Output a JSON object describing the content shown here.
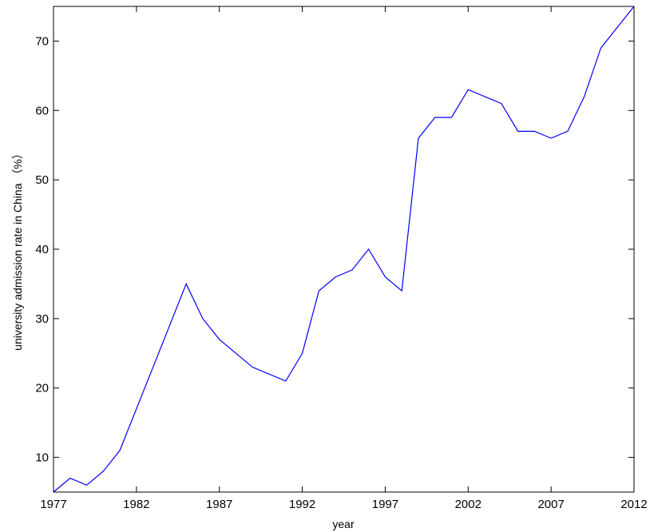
{
  "chart_data": {
    "type": "line",
    "title": "",
    "xlabel": "year",
    "ylabel": "university admission rate in China （%）",
    "xlim": [
      1977,
      2012
    ],
    "ylim": [
      5,
      75
    ],
    "x_ticks": [
      "1977",
      "1982",
      "1987",
      "1992",
      "1997",
      "2002",
      "2007",
      "2012"
    ],
    "y_ticks": [
      "10",
      "20",
      "30",
      "40",
      "50",
      "60",
      "70"
    ],
    "grid": false,
    "legend": "none",
    "series": [
      {
        "color": "#0000ff",
        "x": [
          1977,
          1978,
          1979,
          1980,
          1981,
          1982,
          1983,
          1984,
          1985,
          1986,
          1987,
          1988,
          1989,
          1990,
          1991,
          1992,
          1993,
          1994,
          1995,
          1996,
          1997,
          1998,
          1999,
          2000,
          2001,
          2002,
          2003,
          2004,
          2005,
          2006,
          2007,
          2008,
          2009,
          2010,
          2011,
          2012
        ],
        "values": [
          5,
          7,
          6,
          8,
          11,
          17,
          23,
          29,
          35,
          30,
          27,
          25,
          23,
          22,
          21,
          25,
          34,
          36,
          37,
          40,
          36,
          34,
          56,
          59,
          59,
          63,
          62,
          61,
          57,
          57,
          56,
          57,
          62,
          69,
          72,
          75
        ]
      }
    ]
  }
}
